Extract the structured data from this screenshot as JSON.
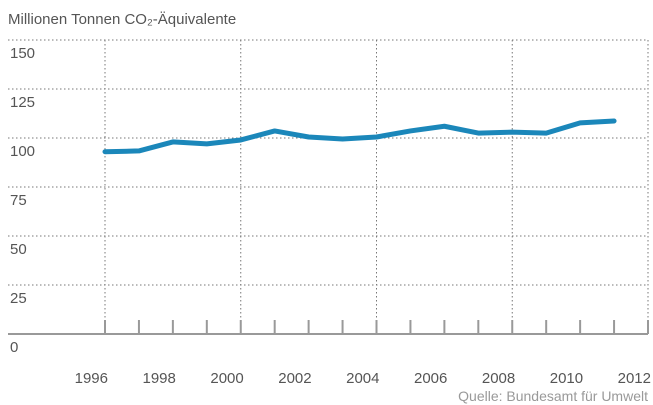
{
  "chart_data": {
    "type": "line",
    "title": "Millionen Tonnen CO₂-Äquivalente",
    "source": "Quelle: Bundesamt für Umwelt",
    "x": [
      1996,
      1997,
      1998,
      1999,
      2000,
      2001,
      2002,
      2003,
      2004,
      2005,
      2006,
      2007,
      2008,
      2009,
      2010,
      2011
    ],
    "series": [
      {
        "name": "CO₂-Äquivalente",
        "color": "#1b87ba",
        "values": [
          93,
          93.4,
          98,
          97,
          99,
          103.6,
          100.5,
          99.5,
          100.5,
          103.6,
          106,
          102.5,
          103,
          102.5,
          107.7,
          108.7
        ]
      }
    ],
    "xlim": [
      1996,
      2012
    ],
    "xticks": [
      1996,
      1998,
      2000,
      2002,
      2004,
      2006,
      2008,
      2010,
      2012
    ],
    "minor_xticks": [
      1997,
      1999,
      2001,
      2003,
      2005,
      2007,
      2009,
      2011
    ],
    "ylim": [
      0,
      150
    ],
    "yticks": [
      0,
      25,
      50,
      75,
      100,
      125,
      150
    ],
    "grid": true
  }
}
